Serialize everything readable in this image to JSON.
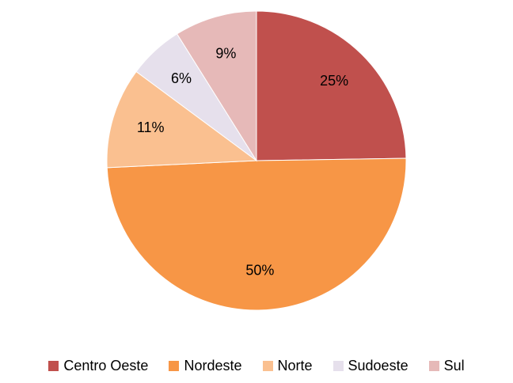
{
  "chart_data": {
    "type": "pie",
    "categories": [
      "Centro Oeste",
      "Nordeste",
      "Norte",
      "Sudoeste",
      "Sul"
    ],
    "values": [
      25,
      50,
      11,
      6,
      9
    ],
    "value_labels": [
      "25%",
      "50%",
      "11%",
      "6%",
      "9%"
    ],
    "colors": [
      "#c0504d",
      "#f79646",
      "#fac090",
      "#e6e0ec",
      "#e6b9b8"
    ],
    "legend": "bottom"
  }
}
